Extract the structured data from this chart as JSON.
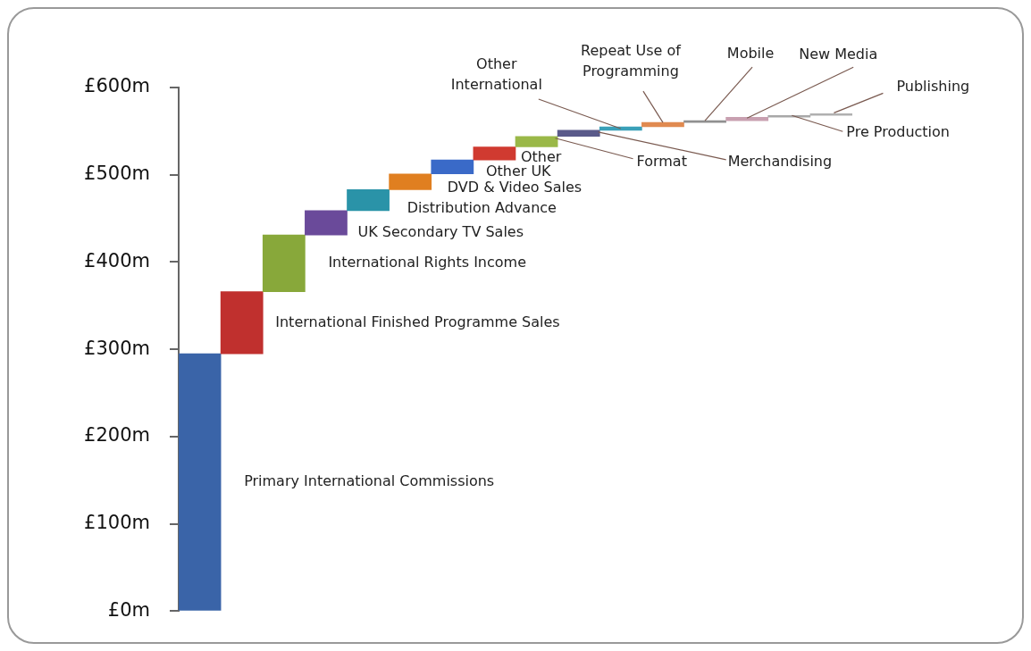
{
  "chart_data": {
    "type": "bar",
    "categories": [
      null,
      null,
      null,
      null,
      null,
      null,
      null,
      null,
      null,
      null,
      null,
      null,
      null,
      null,
      null,
      null
    ],
    "annotations": [
      "Primary International Commissions",
      "International Finished Programme Sales",
      "International Rights Income",
      "UK Secondary TV Sales",
      "Distribution Advance",
      "DVD & Video Sales",
      "Other UK",
      "Other",
      "Format",
      "Merchandising",
      "Other International",
      "Repeat Use of Programming",
      "Mobile",
      "New Media",
      "Pre Production",
      "Publishing"
    ],
    "values": [
      295,
      71,
      65,
      28,
      24,
      18,
      16,
      15,
      12,
      7,
      4,
      5,
      2,
      4,
      2,
      2
    ],
    "base": [
      0,
      295,
      366,
      431,
      459,
      483,
      501,
      517,
      532,
      544,
      551,
      555,
      560,
      562,
      566,
      568
    ],
    "colors": [
      "#3a64a8",
      "#c0302e",
      "#88a83a",
      "#6a4a9a",
      "#2a93a8",
      "#e07f20",
      "#3a6ac8",
      "#d03a30",
      "#9ab848",
      "#5a5a8a",
      "#3aa0b8",
      "#e08a50",
      "#909090",
      "#c8a0b0",
      "#a8a8a8",
      "#b0b0b0"
    ],
    "ylim": [
      0,
      600
    ],
    "yticks": [
      {
        "value": 0,
        "label": "£0m"
      },
      {
        "value": 100,
        "label": "£100m"
      },
      {
        "value": 200,
        "label": "£200m"
      },
      {
        "value": 300,
        "label": "£300m"
      },
      {
        "value": 400,
        "label": "£400m"
      },
      {
        "value": 500,
        "label": "£500m"
      },
      {
        "value": 600,
        "label": "£600m"
      }
    ],
    "tick_labels": "y",
    "grid": false,
    "legend": false
  }
}
